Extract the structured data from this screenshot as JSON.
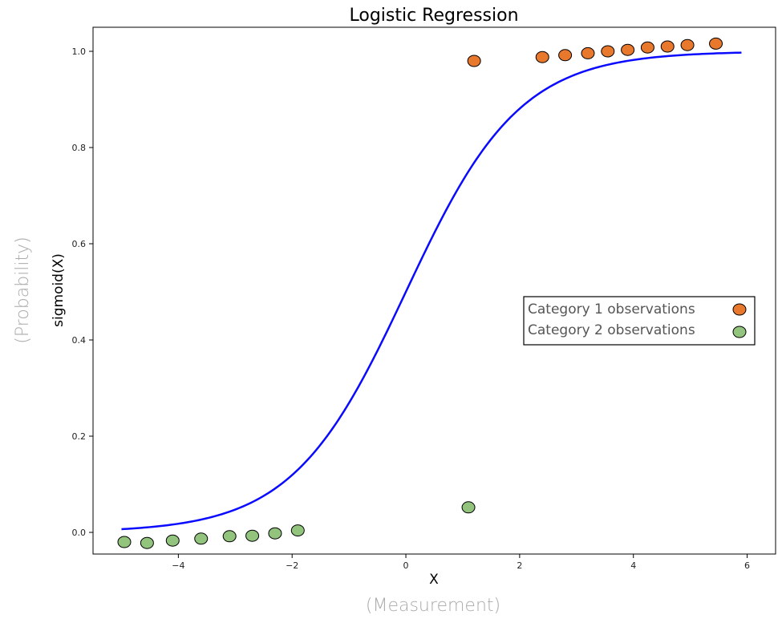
{
  "chart_data": {
    "type": "scatter",
    "title": "Logistic Regression",
    "xlabel": "X",
    "xlabel_sub": "(Measurement)",
    "ylabel": "sigmoid(X)",
    "ylabel_sub": "(Probability)",
    "xlim": [
      -5.5,
      6.5
    ],
    "ylim": [
      -0.045,
      1.05
    ],
    "x_ticks": [
      -4,
      -2,
      0,
      2,
      4,
      6
    ],
    "x_tick_labels": [
      "−4",
      "−2",
      "0",
      "2",
      "4",
      "6"
    ],
    "y_ticks": [
      0.0,
      0.2,
      0.4,
      0.6,
      0.8,
      1.0
    ],
    "y_tick_labels": [
      "0.0",
      "0.2",
      "0.4",
      "0.6",
      "0.8",
      "1.0"
    ],
    "grid": false,
    "legend_position": "center-right",
    "curve": {
      "function": "sigmoid",
      "x_range": [
        -5,
        5.9
      ],
      "color": "#0a0aff"
    },
    "series": [
      {
        "name": "Category 1 observations",
        "color": "#e8782c",
        "points": [
          [
            1.2,
            0.98
          ],
          [
            2.4,
            0.988
          ],
          [
            2.8,
            0.992
          ],
          [
            3.2,
            0.996
          ],
          [
            3.55,
            1.0
          ],
          [
            3.9,
            1.003
          ],
          [
            4.25,
            1.008
          ],
          [
            4.6,
            1.01
          ],
          [
            4.95,
            1.013
          ],
          [
            5.45,
            1.016
          ]
        ]
      },
      {
        "name": "Category 2 observations",
        "color": "#93c47d",
        "points": [
          [
            -4.95,
            -0.02
          ],
          [
            -4.55,
            -0.022
          ],
          [
            -4.1,
            -0.017
          ],
          [
            -3.6,
            -0.013
          ],
          [
            -3.1,
            -0.008
          ],
          [
            -2.7,
            -0.007
          ],
          [
            -2.3,
            -0.002
          ],
          [
            -1.9,
            0.004
          ],
          [
            1.1,
            0.052
          ]
        ]
      }
    ]
  }
}
